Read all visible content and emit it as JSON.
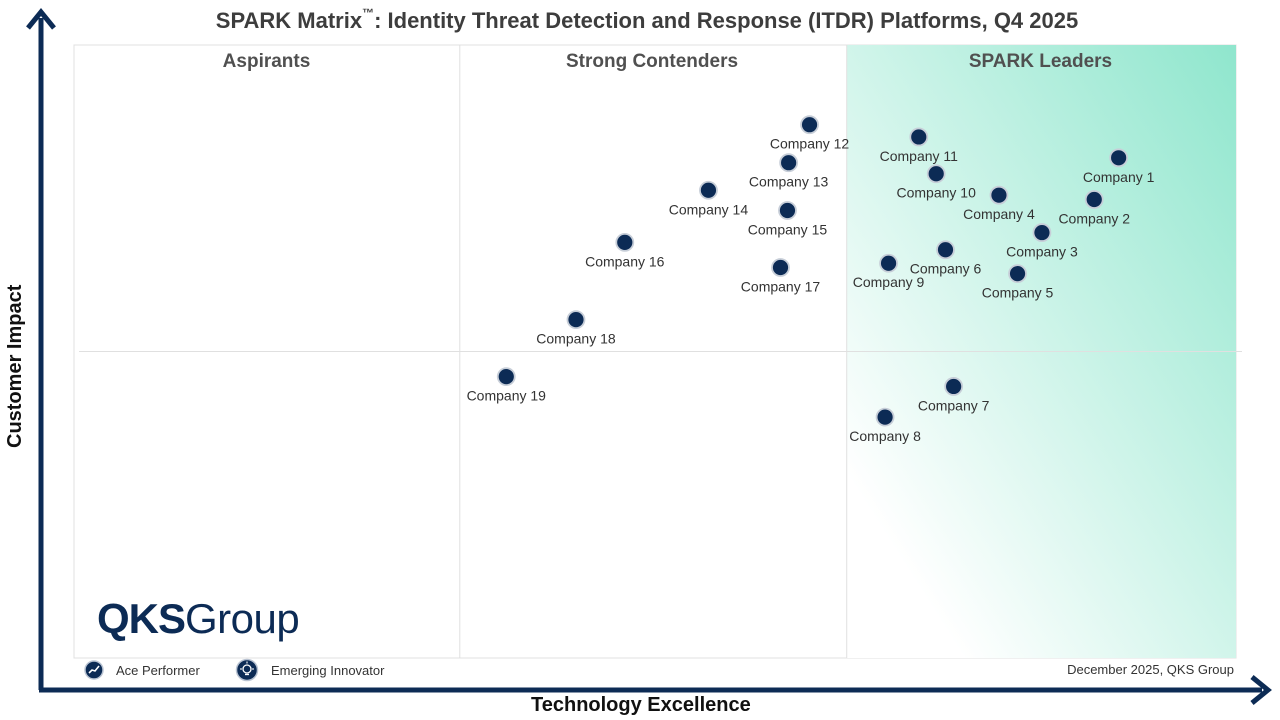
{
  "title_main": "SPARK Matrix",
  "title_tm": "™",
  "title_rest": ": Identity Threat Detection and Response (ITDR) Platforms, Q4 2025",
  "zones": {
    "aspirants": "Aspirants",
    "contenders": "Strong Contenders",
    "leaders": "SPARK Leaders"
  },
  "logo": {
    "strong": "QKS",
    "rest": "Group"
  },
  "legend": {
    "ace": "Ace Performer",
    "emerging": "Emerging Innovator"
  },
  "footnote": "December 2025, QKS Group",
  "colors": {
    "navy": "#0c2b55",
    "leader_gradient": "#8fe6cd",
    "grid": "#e0e0e0",
    "label": "#333333"
  },
  "chart_data": {
    "type": "scatter",
    "xlabel": "Technology Excellence",
    "ylabel": "Customer Impact",
    "xlim": [
      0,
      100
    ],
    "ylim": [
      0,
      100
    ],
    "quadrant_dividers": {
      "x": [
        33.2,
        66.5
      ],
      "y": 50
    },
    "points": [
      {
        "name": "Company 1",
        "x": 89.9,
        "y": 81.6,
        "label_pos": "below"
      },
      {
        "name": "Company 2",
        "x": 87.8,
        "y": 74.8,
        "label_pos": "below"
      },
      {
        "name": "Company 3",
        "x": 83.3,
        "y": 69.4,
        "label_pos": "below"
      },
      {
        "name": "Company 4",
        "x": 79.6,
        "y": 75.5,
        "label_pos": "below"
      },
      {
        "name": "Company 5",
        "x": 81.2,
        "y": 62.7,
        "label_pos": "below"
      },
      {
        "name": "Company 6",
        "x": 75.0,
        "y": 66.6,
        "label_pos": "below"
      },
      {
        "name": "Company 7",
        "x": 75.7,
        "y": 44.3,
        "label_pos": "below"
      },
      {
        "name": "Company 8",
        "x": 69.8,
        "y": 39.3,
        "label_pos": "below"
      },
      {
        "name": "Company 9",
        "x": 70.1,
        "y": 64.4,
        "label_pos": "below"
      },
      {
        "name": "Company 10",
        "x": 74.2,
        "y": 79.0,
        "label_pos": "below"
      },
      {
        "name": "Company 11",
        "x": 72.7,
        "y": 85.0,
        "label_pos": "below"
      },
      {
        "name": "Company 12",
        "x": 63.3,
        "y": 87.0,
        "label_pos": "below"
      },
      {
        "name": "Company 13",
        "x": 61.5,
        "y": 80.8,
        "label_pos": "below"
      },
      {
        "name": "Company 14",
        "x": 54.6,
        "y": 76.3,
        "label_pos": "below"
      },
      {
        "name": "Company 15",
        "x": 61.4,
        "y": 73.0,
        "label_pos": "below"
      },
      {
        "name": "Company 16",
        "x": 47.4,
        "y": 67.8,
        "label_pos": "below"
      },
      {
        "name": "Company 17",
        "x": 60.8,
        "y": 63.7,
        "label_pos": "below"
      },
      {
        "name": "Company 18",
        "x": 43.2,
        "y": 55.2,
        "label_pos": "below"
      },
      {
        "name": "Company 19",
        "x": 37.2,
        "y": 45.9,
        "label_pos": "below"
      }
    ]
  }
}
